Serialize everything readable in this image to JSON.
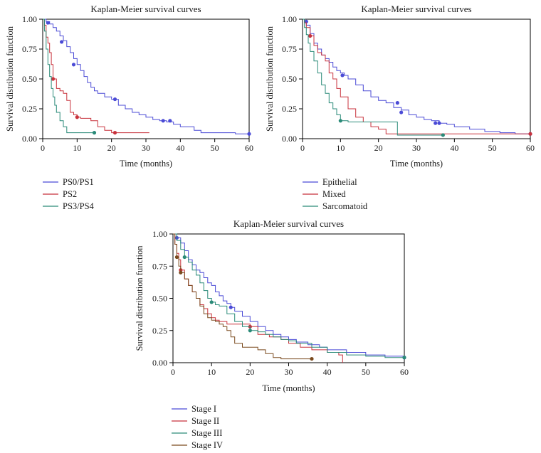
{
  "colors": {
    "axis": "#000000"
  },
  "chart_data": [
    {
      "type": "line",
      "title": "Kaplan-Meier survival curves",
      "xlabel": "Time (months)",
      "ylabel": "Survival distribution function",
      "xlim": [
        0,
        60
      ],
      "ylim": [
        0,
        1
      ],
      "xticks": [
        0,
        10,
        20,
        30,
        40,
        50,
        60
      ],
      "yticks": [
        0,
        0.25,
        0.5,
        0.75,
        1
      ],
      "ytick_labels": [
        "0.00",
        "0.25",
        "0.50",
        "0.75",
        "1.00"
      ],
      "grid": false,
      "legend_position": "bottom-left",
      "series": [
        {
          "name": "PS0/PS1",
          "color": "#4b4bd6",
          "x": [
            0,
            1,
            2,
            3,
            4,
            5,
            6,
            7,
            8,
            9,
            10,
            11,
            12,
            13,
            14,
            15,
            16,
            18,
            20,
            22,
            24,
            26,
            28,
            30,
            32,
            34,
            36,
            38,
            40,
            44,
            46,
            48,
            52,
            56,
            60
          ],
          "y": [
            1.0,
            0.98,
            0.96,
            0.93,
            0.9,
            0.86,
            0.82,
            0.77,
            0.72,
            0.67,
            0.62,
            0.57,
            0.52,
            0.47,
            0.43,
            0.4,
            0.38,
            0.35,
            0.33,
            0.28,
            0.25,
            0.22,
            0.2,
            0.18,
            0.16,
            0.15,
            0.14,
            0.12,
            0.1,
            0.07,
            0.05,
            0.05,
            0.05,
            0.04,
            0.04
          ],
          "censor_x": [
            1.5,
            5.5,
            9,
            21,
            35,
            37,
            60
          ],
          "censor_y": [
            0.97,
            0.81,
            0.62,
            0.33,
            0.15,
            0.15,
            0.04
          ]
        },
        {
          "name": "PS2",
          "color": "#c8323c",
          "x": [
            0,
            0.5,
            1,
            1.5,
            2,
            2.5,
            3,
            4,
            5,
            6,
            7,
            8,
            9,
            10,
            11,
            12,
            14,
            16,
            18,
            20,
            22,
            25,
            31
          ],
          "y": [
            1.0,
            0.95,
            0.85,
            0.8,
            0.72,
            0.62,
            0.5,
            0.42,
            0.4,
            0.38,
            0.32,
            0.22,
            0.2,
            0.18,
            0.17,
            0.17,
            0.15,
            0.1,
            0.07,
            0.05,
            0.05,
            0.05,
            0.05
          ],
          "censor_x": [
            3,
            10,
            21
          ],
          "censor_y": [
            0.5,
            0.18,
            0.05
          ]
        },
        {
          "name": "PS3/PS4",
          "color": "#2a8a78",
          "x": [
            0,
            0.5,
            1,
            1.5,
            2,
            2.5,
            3,
            3.5,
            4,
            5,
            6,
            7,
            8,
            9,
            10,
            12,
            15
          ],
          "y": [
            1.0,
            0.9,
            0.75,
            0.62,
            0.52,
            0.42,
            0.35,
            0.28,
            0.22,
            0.15,
            0.1,
            0.05,
            0.05,
            0.05,
            0.05,
            0.05,
            0.05
          ],
          "censor_x": [
            15
          ],
          "censor_y": [
            0.05
          ]
        }
      ]
    },
    {
      "type": "line",
      "title": "Kaplan-Meier survival curves",
      "xlabel": "Time (months)",
      "ylabel": "Survival distribution function",
      "xlim": [
        0,
        60
      ],
      "ylim": [
        0,
        1
      ],
      "xticks": [
        0,
        10,
        20,
        30,
        40,
        50,
        60
      ],
      "yticks": [
        0,
        0.25,
        0.5,
        0.75,
        1
      ],
      "ytick_labels": [
        "0.00",
        "0.25",
        "0.50",
        "0.75",
        "1.00"
      ],
      "grid": false,
      "legend_position": "bottom-left",
      "series": [
        {
          "name": "Epithelial",
          "color": "#4b4bd6",
          "x": [
            0,
            0.5,
            1,
            2,
            3,
            4,
            5,
            6,
            7,
            8,
            9,
            10,
            11,
            12,
            14,
            16,
            18,
            20,
            22,
            24,
            26,
            28,
            30,
            32,
            34,
            36,
            38,
            40,
            44,
            48,
            52,
            56,
            60
          ],
          "y": [
            1.0,
            0.98,
            0.95,
            0.88,
            0.8,
            0.75,
            0.7,
            0.67,
            0.64,
            0.6,
            0.57,
            0.55,
            0.53,
            0.5,
            0.45,
            0.4,
            0.35,
            0.32,
            0.3,
            0.26,
            0.24,
            0.2,
            0.18,
            0.16,
            0.15,
            0.13,
            0.12,
            0.1,
            0.08,
            0.06,
            0.05,
            0.04,
            0.04
          ],
          "censor_x": [
            1,
            10.5,
            25,
            26,
            35,
            36,
            60
          ],
          "censor_y": [
            0.98,
            0.53,
            0.3,
            0.22,
            0.13,
            0.13,
            0.04
          ]
        },
        {
          "name": "Mixed",
          "color": "#c8323c",
          "x": [
            0,
            0.5,
            1,
            2,
            3,
            4,
            5,
            6,
            7,
            8,
            9,
            10,
            12,
            14,
            16,
            18,
            20,
            22,
            30,
            40,
            50,
            60
          ],
          "y": [
            1.0,
            0.97,
            0.93,
            0.86,
            0.78,
            0.72,
            0.7,
            0.65,
            0.55,
            0.5,
            0.42,
            0.35,
            0.25,
            0.18,
            0.14,
            0.1,
            0.08,
            0.04,
            0.04,
            0.04,
            0.04,
            0.04
          ],
          "censor_x": [
            2,
            60
          ],
          "censor_y": [
            0.86,
            0.04
          ]
        },
        {
          "name": "Sarcomatoid",
          "color": "#2a8a78",
          "x": [
            0,
            0.5,
            1,
            1.5,
            2,
            3,
            4,
            5,
            6,
            7,
            8,
            9,
            10,
            12,
            15,
            20,
            25,
            30,
            37
          ],
          "y": [
            1.0,
            0.93,
            0.87,
            0.8,
            0.73,
            0.65,
            0.55,
            0.45,
            0.38,
            0.3,
            0.25,
            0.2,
            0.15,
            0.14,
            0.14,
            0.14,
            0.03,
            0.03,
            0.03
          ],
          "censor_x": [
            10,
            37
          ],
          "censor_y": [
            0.15,
            0.03
          ]
        }
      ]
    },
    {
      "type": "line",
      "title": "Kaplan-Meier survival curves",
      "xlabel": "Time (months)",
      "ylabel": "Survival distribution function",
      "xlim": [
        0,
        60
      ],
      "ylim": [
        0,
        1
      ],
      "xticks": [
        0,
        10,
        20,
        30,
        40,
        50,
        60
      ],
      "yticks": [
        0,
        0.25,
        0.5,
        0.75,
        1
      ],
      "ytick_labels": [
        "0.00",
        "0.25",
        "0.50",
        "0.75",
        "1.00"
      ],
      "grid": false,
      "legend_position": "bottom-left",
      "series": [
        {
          "name": "Stage I",
          "color": "#4b4bd6",
          "x": [
            0,
            1,
            2,
            3,
            4,
            5,
            6,
            7,
            8,
            9,
            10,
            11,
            12,
            13,
            14,
            15,
            16,
            18,
            20,
            22,
            24,
            26,
            28,
            30,
            32,
            35,
            38,
            40,
            45,
            50,
            55,
            60
          ],
          "y": [
            1.0,
            0.97,
            0.93,
            0.87,
            0.8,
            0.76,
            0.72,
            0.7,
            0.66,
            0.62,
            0.6,
            0.55,
            0.52,
            0.48,
            0.46,
            0.43,
            0.4,
            0.36,
            0.32,
            0.28,
            0.25,
            0.22,
            0.2,
            0.18,
            0.16,
            0.14,
            0.12,
            0.1,
            0.08,
            0.06,
            0.05,
            0.04
          ],
          "censor_x": [
            1,
            15,
            60
          ],
          "censor_y": [
            0.97,
            0.43,
            0.04
          ]
        },
        {
          "name": "Stage II",
          "color": "#c8323c",
          "x": [
            0,
            0.5,
            1,
            1.5,
            2,
            3,
            4,
            5,
            6,
            7,
            8,
            9,
            10,
            11,
            12,
            14,
            16,
            18,
            20,
            22,
            25,
            28,
            30,
            33,
            36,
            40,
            43,
            44
          ],
          "y": [
            1.0,
            0.92,
            0.85,
            0.8,
            0.72,
            0.65,
            0.6,
            0.55,
            0.5,
            0.45,
            0.42,
            0.38,
            0.35,
            0.33,
            0.32,
            0.3,
            0.3,
            0.3,
            0.28,
            0.22,
            0.2,
            0.18,
            0.15,
            0.12,
            0.1,
            0.08,
            0.06,
            0.0
          ],
          "censor_x": [
            2,
            20
          ],
          "censor_y": [
            0.72,
            0.28
          ]
        },
        {
          "name": "Stage III",
          "color": "#2a8a78",
          "x": [
            0,
            1,
            2,
            3,
            4,
            5,
            6,
            7,
            8,
            9,
            10,
            11,
            12,
            14,
            16,
            18,
            20,
            22,
            24,
            26,
            28,
            30,
            32,
            36,
            40,
            45,
            50,
            55,
            60
          ],
          "y": [
            1.0,
            0.95,
            0.88,
            0.82,
            0.78,
            0.72,
            0.68,
            0.62,
            0.56,
            0.5,
            0.47,
            0.45,
            0.44,
            0.38,
            0.32,
            0.28,
            0.25,
            0.24,
            0.22,
            0.2,
            0.18,
            0.17,
            0.15,
            0.12,
            0.08,
            0.06,
            0.05,
            0.04,
            0.04
          ],
          "censor_x": [
            3,
            10,
            20,
            60
          ],
          "censor_y": [
            0.82,
            0.47,
            0.25,
            0.04
          ]
        },
        {
          "name": "Stage IV",
          "color": "#7a4a1e",
          "x": [
            0,
            0.5,
            1,
            1.5,
            2,
            3,
            4,
            5,
            6,
            7,
            8,
            9,
            10,
            11,
            12,
            13,
            14,
            15,
            16,
            18,
            20,
            22,
            24,
            26,
            28,
            30,
            32,
            34,
            36
          ],
          "y": [
            1.0,
            0.92,
            0.82,
            0.75,
            0.7,
            0.65,
            0.6,
            0.55,
            0.5,
            0.44,
            0.38,
            0.35,
            0.33,
            0.32,
            0.3,
            0.28,
            0.25,
            0.2,
            0.15,
            0.12,
            0.12,
            0.1,
            0.07,
            0.04,
            0.03,
            0.03,
            0.03,
            0.03,
            0.03
          ],
          "censor_x": [
            1,
            2,
            36
          ],
          "censor_y": [
            0.82,
            0.7,
            0.03
          ]
        }
      ]
    }
  ]
}
